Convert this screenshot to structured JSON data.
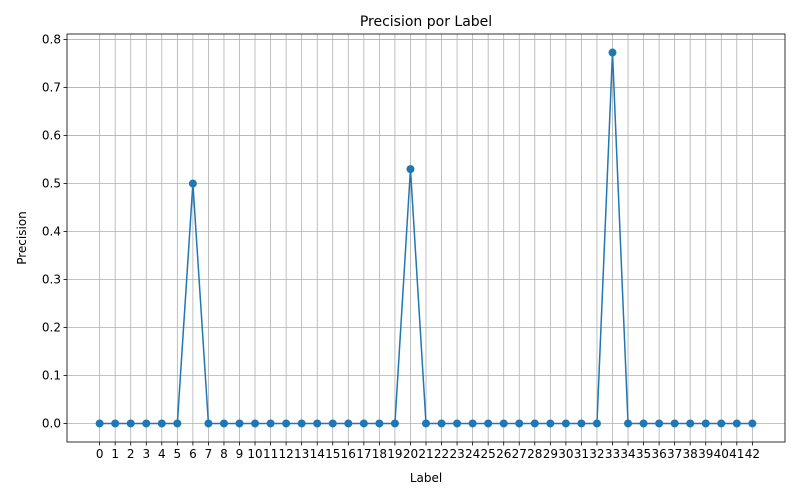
{
  "chart_data": {
    "type": "line",
    "title": "Precision por Label",
    "xlabel": "Label",
    "ylabel": "Precision",
    "x": [
      0,
      1,
      2,
      3,
      4,
      5,
      6,
      7,
      8,
      9,
      10,
      11,
      12,
      13,
      14,
      15,
      16,
      17,
      18,
      19,
      20,
      21,
      22,
      23,
      24,
      25,
      26,
      27,
      28,
      29,
      30,
      31,
      32,
      33,
      34,
      35,
      36,
      37,
      38,
      39,
      40,
      41,
      42
    ],
    "series": [
      {
        "values": [
          0,
          0,
          0,
          0,
          0,
          0,
          0.5,
          0,
          0,
          0,
          0,
          0,
          0,
          0,
          0,
          0,
          0,
          0,
          0,
          0,
          0.53,
          0,
          0,
          0,
          0,
          0,
          0,
          0,
          0,
          0,
          0,
          0,
          0,
          0.773,
          0,
          0,
          0,
          0,
          0,
          0,
          0,
          0,
          0
        ],
        "color": "#1f77b4",
        "marker": "circle"
      }
    ],
    "xlim": [
      -2.1,
      44.1
    ],
    "ylim": [
      -0.0386,
      0.8116
    ],
    "yticks": [
      0.0,
      0.1,
      0.2,
      0.3,
      0.4,
      0.5,
      0.6,
      0.7,
      0.8
    ],
    "ytick_labels": [
      "0.0",
      "0.1",
      "0.2",
      "0.3",
      "0.4",
      "0.5",
      "0.6",
      "0.7",
      "0.8"
    ],
    "grid": true,
    "legend": false
  }
}
